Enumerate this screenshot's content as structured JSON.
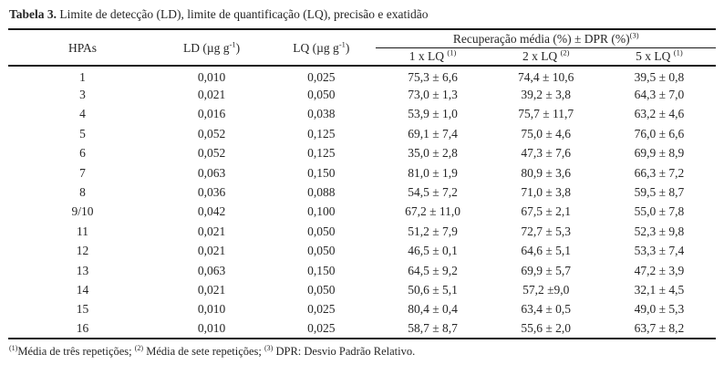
{
  "colors": {
    "ink": "#262626",
    "background": "#ffffff",
    "rule": "#181818"
  },
  "title": {
    "label": "Tabela 3.",
    "text": " Limite de detecção (LD), limite de quantificação (LQ), precisão e exatidão"
  },
  "table": {
    "headers": {
      "hpas": "HPAs",
      "ld": {
        "pre": "LD (µg g",
        "sup": "-1",
        "post": ")"
      },
      "lq": {
        "pre": "LQ (µg g",
        "sup": "-1",
        "post": ")"
      },
      "recovery_group": {
        "pre": "Recuperação média (%) ± DPR (%)",
        "sup": "(3)"
      },
      "sub": [
        {
          "pre": "1 x LQ ",
          "sup": "(1)"
        },
        {
          "pre": "2 x LQ ",
          "sup": "(2)"
        },
        {
          "pre": "5 x LQ ",
          "sup": "(1)"
        }
      ]
    },
    "rows": [
      [
        "1",
        "0,010",
        "0,025",
        "75,3 ± 6,6",
        "74,4 ± 10,6",
        "39,5 ± 0,8"
      ],
      [
        "3",
        "0,021",
        "0,050",
        "73,0 ± 1,3",
        "39,2 ± 3,8",
        "64,3 ± 7,0"
      ],
      [
        "4",
        "0,016",
        "0,038",
        "53,9 ± 1,0",
        "75,7 ± 11,7",
        "63,2 ± 4,6"
      ],
      [
        "5",
        "0,052",
        "0,125",
        "69,1 ± 7,4",
        "75,0 ± 4,6",
        "76,0 ± 6,6"
      ],
      [
        "6",
        "0,052",
        "0,125",
        "35,0 ± 2,8",
        "47,3 ± 7,6",
        "69,9 ± 8,9"
      ],
      [
        "7",
        "0,063",
        "0,150",
        "81,0 ± 1,9",
        "80,9 ± 3,6",
        "66,3 ± 7,2"
      ],
      [
        "8",
        "0,036",
        "0,088",
        "54,5 ± 7,2",
        "71,0 ± 3,8",
        "59,5 ± 8,7"
      ],
      [
        "9/10",
        "0,042",
        "0,100",
        "67,2 ± 11,0",
        "67,5 ± 2,1",
        "55,0 ± 7,8"
      ],
      [
        "11",
        "0,021",
        "0,050",
        "51,2 ± 7,9",
        "72,7 ± 5,3",
        "52,3 ± 9,8"
      ],
      [
        "12",
        "0,021",
        "0,050",
        "46,5 ± 0,1",
        "64,6 ± 5,1",
        "53,3 ± 7,4"
      ],
      [
        "13",
        "0,063",
        "0,150",
        "64,5 ± 9,2",
        "69,9 ± 5,7",
        "47,2 ± 3,9"
      ],
      [
        "14",
        "0,021",
        "0,050",
        "50,6 ± 5,1",
        "57,2 ±9,0",
        "32,1 ± 4,5"
      ],
      [
        "15",
        "0,010",
        "0,025",
        "80,4 ± 0,4",
        "63,4 ± 0,5",
        "49,0 ± 5,3"
      ],
      [
        "16",
        "0,010",
        "0,025",
        "58,7 ± 8,7",
        "55,6 ± 2,0",
        "63,7 ± 8,2"
      ]
    ]
  },
  "footnote": {
    "segments": [
      {
        "sup": true,
        "text": "(1)"
      },
      {
        "sup": false,
        "text": "Média de três repetições; "
      },
      {
        "sup": true,
        "text": "(2)"
      },
      {
        "sup": false,
        "text": " Média de sete repetições; "
      },
      {
        "sup": true,
        "text": "(3)"
      },
      {
        "sup": false,
        "text": " DPR: Desvio Padrão Relativo."
      }
    ]
  }
}
